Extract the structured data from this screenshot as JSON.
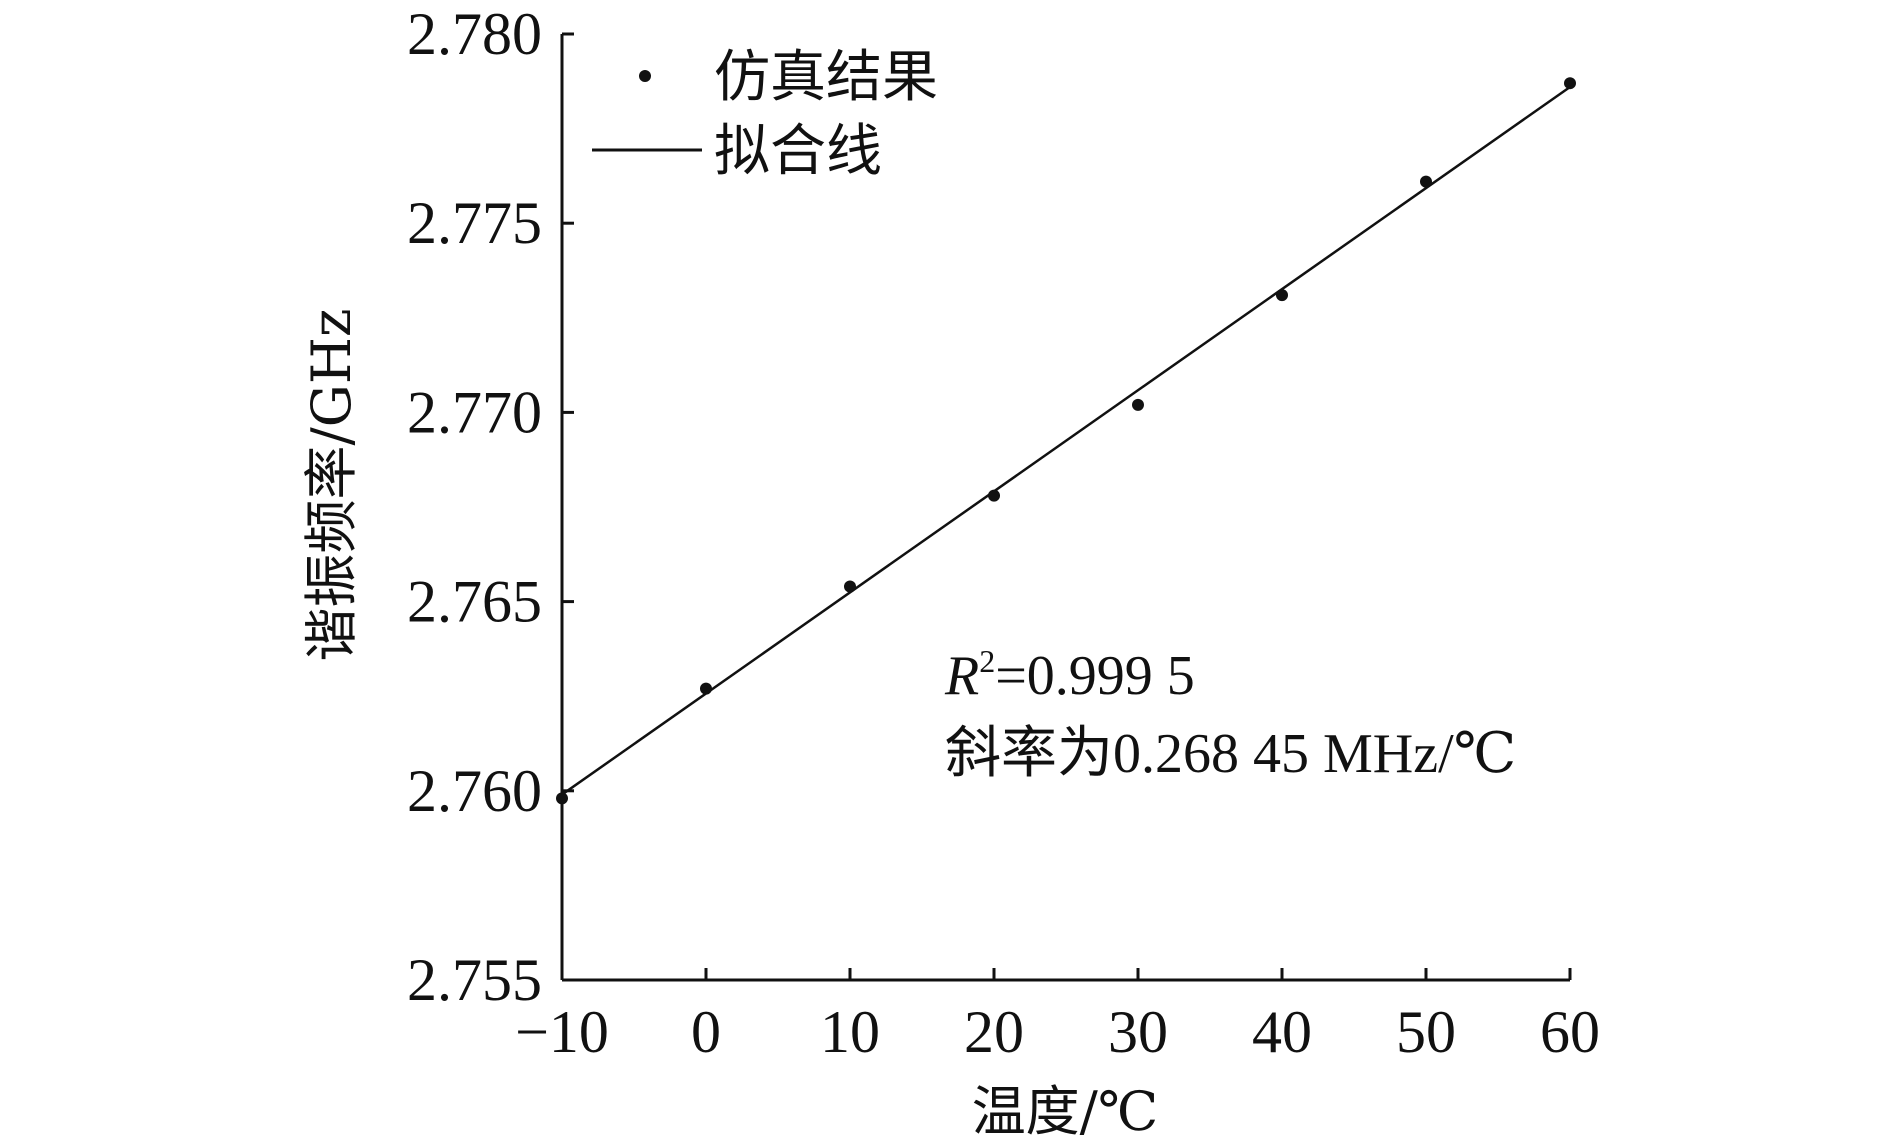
{
  "chart_data": {
    "type": "scatter",
    "xlabel": "温度/℃",
    "ylabel": "谐振频率/GHz",
    "xlim": [
      -10,
      60
    ],
    "ylim": [
      2.755,
      2.78
    ],
    "x_ticks": [
      -10,
      0,
      10,
      20,
      30,
      40,
      50,
      60
    ],
    "x_tick_labels": [
      "−10",
      "0",
      "10",
      "20",
      "30",
      "40",
      "50",
      "60"
    ],
    "y_ticks": [
      2.755,
      2.76,
      2.765,
      2.77,
      2.775,
      2.78
    ],
    "y_tick_labels": [
      "2.755",
      "2.760",
      "2.765",
      "2.770",
      "2.775",
      "2.780"
    ],
    "grid": false,
    "legend_position": "top-left",
    "series": [
      {
        "name": "仿真结果",
        "kind": "scatter",
        "x": [
          -10,
          0,
          10,
          20,
          30,
          40,
          50,
          60
        ],
        "y": [
          2.7598,
          2.7627,
          2.7654,
          2.7678,
          2.7702,
          2.7731,
          2.7761,
          2.7787
        ]
      },
      {
        "name": "拟合线",
        "kind": "line",
        "x": [
          -10,
          60
        ],
        "y": [
          2.7599,
          2.7786
        ]
      }
    ],
    "annotations": {
      "r2_label": "R",
      "r2_superscript": "2",
      "r2_value": "=0.999 5",
      "slope_text": "斜率为0.268 45 MHz/℃"
    }
  }
}
